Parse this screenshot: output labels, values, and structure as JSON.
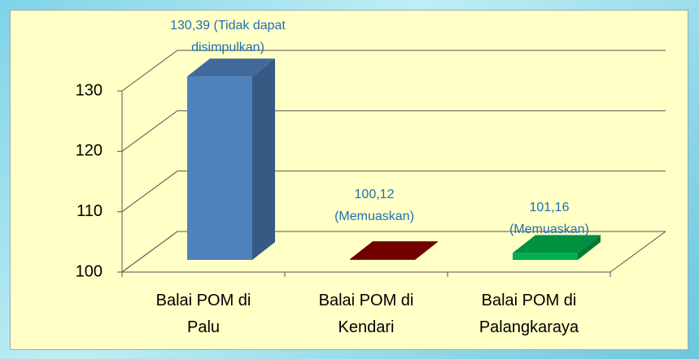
{
  "chart_data": {
    "type": "bar3d",
    "categories": [
      "Balai POM di Palu",
      "Balai POM di Kendari",
      "Balai POM di Palangkaraya"
    ],
    "values": [
      130.39,
      100.12,
      101.16
    ],
    "value_labels": [
      "130,39 (Tidak dapat disimpulkan)",
      "100,12 (Memuaskan)",
      "101,16 (Memuaskan)"
    ],
    "colors": [
      "#4f81bd",
      "#8b0000",
      "#00b050"
    ],
    "ylim": [
      100,
      130
    ],
    "yticks": [
      100,
      110,
      120,
      130
    ],
    "grid": true
  }
}
